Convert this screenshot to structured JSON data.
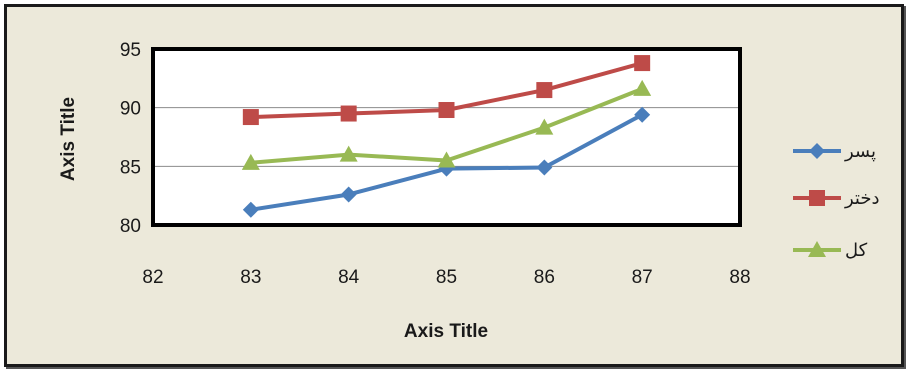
{
  "chart_data": {
    "type": "line",
    "xlabel": "Axis Title",
    "ylabel": "Axis Title",
    "xlim": [
      82,
      88
    ],
    "ylim": [
      80,
      95
    ],
    "x_ticks": [
      82,
      83,
      84,
      85,
      86,
      87,
      88
    ],
    "y_ticks": [
      80,
      85,
      90,
      95
    ],
    "grid": "horizontal",
    "legend_position": "right",
    "series": [
      {
        "name": "پسر",
        "color": "#4a7ebb",
        "marker": "diamond",
        "x": [
          83,
          84,
          85,
          86,
          87
        ],
        "values": [
          81.3,
          82.6,
          84.8,
          84.9,
          89.4
        ]
      },
      {
        "name": "دختر",
        "color": "#be4b48",
        "marker": "square",
        "x": [
          83,
          84,
          85,
          86,
          87
        ],
        "values": [
          89.2,
          89.5,
          89.8,
          91.5,
          93.8
        ]
      },
      {
        "name": "کل",
        "color": "#98b954",
        "marker": "triangle",
        "x": [
          83,
          84,
          85,
          86,
          87
        ],
        "values": [
          85.3,
          86.0,
          85.5,
          88.3,
          91.6
        ]
      }
    ]
  }
}
